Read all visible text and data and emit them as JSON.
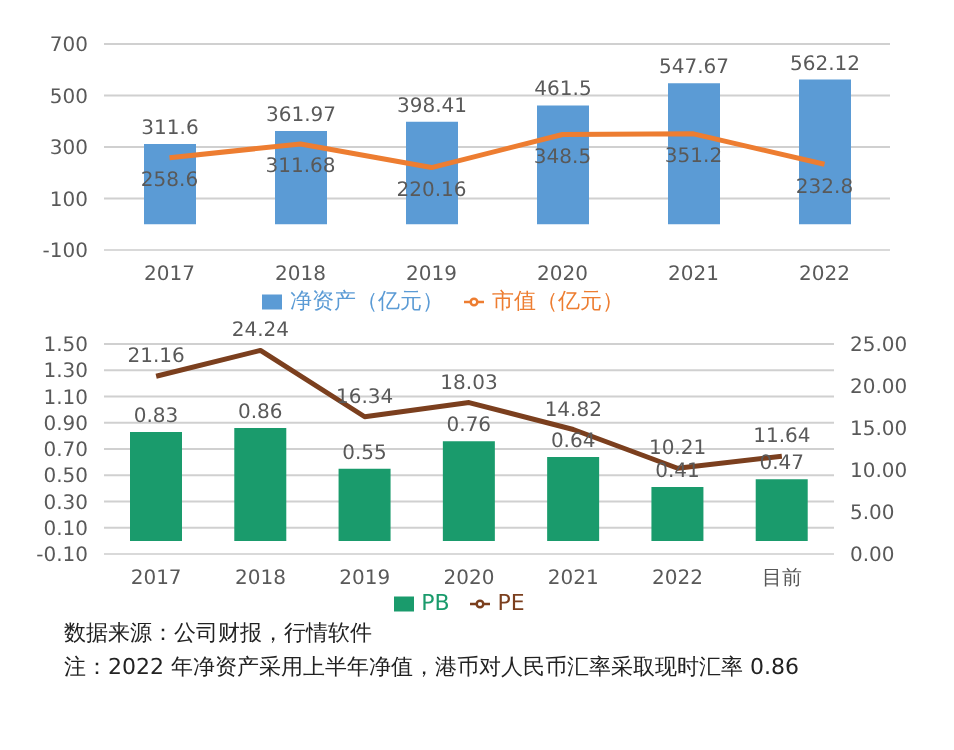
{
  "chart_data": [
    {
      "type": "bar",
      "categories": [
        "2017",
        "2018",
        "2019",
        "2020",
        "2021",
        "2022"
      ],
      "series": [
        {
          "name": "净资产（亿元）",
          "color": "#5b9bd5",
          "values": [
            311.6,
            361.97,
            398.41,
            461.5,
            547.67,
            562.12
          ]
        },
        {
          "name": "市值（亿元）",
          "type": "line",
          "color": "#ed7d31",
          "values": [
            258.6,
            311.68,
            220.16,
            348.5,
            351.2,
            232.8
          ]
        }
      ],
      "ylim": [
        -100,
        700
      ],
      "yticks": [
        -100,
        100,
        300,
        500,
        700
      ],
      "grid": "y",
      "legend": "bottom",
      "data_labels": true
    },
    {
      "type": "bar",
      "categories": [
        "2017",
        "2018",
        "2019",
        "2020",
        "2021",
        "2022",
        "目前"
      ],
      "series": [
        {
          "name": "PB",
          "color": "#1a9b6c",
          "values": [
            0.83,
            0.86,
            0.55,
            0.76,
            0.64,
            0.41,
            0.47
          ]
        },
        {
          "name": "PE",
          "type": "line",
          "axis": "y2",
          "color": "#7b3f1e",
          "values": [
            21.16,
            24.24,
            16.34,
            18.03,
            14.82,
            10.21,
            11.64
          ]
        }
      ],
      "ylim": [
        -0.1,
        1.5
      ],
      "yticks": [
        {
          "value": -0.1,
          "label": "-0.10"
        },
        {
          "value": 0.1,
          "label": "0.10"
        },
        {
          "value": 0.3,
          "label": "0.30"
        },
        {
          "value": 0.5,
          "label": "0.50"
        },
        {
          "value": 0.7,
          "label": "0.70"
        },
        {
          "value": 0.9,
          "label": "0.90"
        },
        {
          "value": 1.1,
          "label": "1.10"
        },
        {
          "value": 1.3,
          "label": "1.30"
        },
        {
          "value": 1.5,
          "label": "1.50"
        }
      ],
      "y2lim": [
        0,
        25
      ],
      "y2ticks": [
        {
          "value": 0,
          "label": "0.00"
        },
        {
          "value": 5,
          "label": "5.00"
        },
        {
          "value": 10,
          "label": "10.00"
        },
        {
          "value": 15,
          "label": "15.00"
        },
        {
          "value": 20,
          "label": "20.00"
        },
        {
          "value": 25,
          "label": "25.00"
        }
      ],
      "grid": "y",
      "legend": "bottom",
      "data_labels": true,
      "annotations": [
        "数据来源：公司财报，行情软件",
        "注：2022 年净资产采用上半年净值，港币对人民币汇率采取现时汇率 0.86"
      ]
    }
  ]
}
